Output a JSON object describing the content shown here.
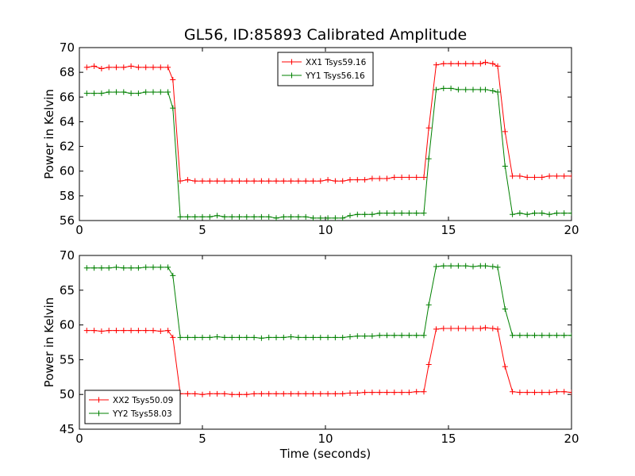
{
  "title": "GL56, ID:85893 Calibrated Amplitude",
  "chart_data": [
    {
      "type": "line",
      "title": "GL56, ID:85893 Calibrated Amplitude",
      "xlabel": "",
      "ylabel": "Power in Kelvin",
      "xlim": [
        0,
        20
      ],
      "ylim": [
        56,
        70
      ],
      "xticks": [
        0,
        5,
        10,
        15,
        20
      ],
      "yticks": [
        56,
        58,
        60,
        62,
        64,
        66,
        68,
        70
      ],
      "grid": false,
      "legend_position": "upper center",
      "x": [
        0.3,
        0.6,
        0.9,
        1.2,
        1.5,
        1.8,
        2.1,
        2.4,
        2.7,
        3.0,
        3.3,
        3.6,
        3.8,
        4.1,
        4.4,
        4.7,
        5.0,
        5.3,
        5.6,
        5.9,
        6.2,
        6.5,
        6.8,
        7.1,
        7.4,
        7.7,
        8.0,
        8.3,
        8.6,
        8.9,
        9.2,
        9.5,
        9.8,
        10.1,
        10.4,
        10.7,
        11.0,
        11.3,
        11.6,
        11.9,
        12.2,
        12.5,
        12.8,
        13.1,
        13.4,
        13.7,
        14.0,
        14.2,
        14.5,
        14.8,
        15.1,
        15.4,
        15.7,
        16.0,
        16.3,
        16.5,
        16.8,
        17.0,
        17.3,
        17.6,
        17.9,
        18.2,
        18.5,
        18.8,
        19.1,
        19.4,
        19.7,
        20.0
      ],
      "series": [
        {
          "name": "XX1 Tsys59.16",
          "color": "#ff0000",
          "values": [
            68.4,
            68.5,
            68.3,
            68.4,
            68.4,
            68.4,
            68.5,
            68.4,
            68.4,
            68.4,
            68.4,
            68.4,
            67.4,
            59.2,
            59.3,
            59.2,
            59.2,
            59.2,
            59.2,
            59.2,
            59.2,
            59.2,
            59.2,
            59.2,
            59.2,
            59.2,
            59.2,
            59.2,
            59.2,
            59.2,
            59.2,
            59.2,
            59.2,
            59.3,
            59.2,
            59.2,
            59.3,
            59.3,
            59.3,
            59.4,
            59.4,
            59.4,
            59.5,
            59.5,
            59.5,
            59.5,
            59.5,
            63.5,
            68.6,
            68.7,
            68.7,
            68.7,
            68.7,
            68.7,
            68.7,
            68.8,
            68.7,
            68.5,
            63.2,
            59.6,
            59.6,
            59.5,
            59.5,
            59.5,
            59.6,
            59.6,
            59.6,
            59.6
          ]
        },
        {
          "name": "YY1 Tsys56.16",
          "color": "#008000",
          "values": [
            66.3,
            66.3,
            66.3,
            66.4,
            66.4,
            66.4,
            66.3,
            66.3,
            66.4,
            66.4,
            66.4,
            66.4,
            65.1,
            56.3,
            56.3,
            56.3,
            56.3,
            56.3,
            56.4,
            56.3,
            56.3,
            56.3,
            56.3,
            56.3,
            56.3,
            56.3,
            56.2,
            56.3,
            56.3,
            56.3,
            56.3,
            56.2,
            56.2,
            56.2,
            56.2,
            56.2,
            56.4,
            56.5,
            56.5,
            56.5,
            56.6,
            56.6,
            56.6,
            56.6,
            56.6,
            56.6,
            56.6,
            61.0,
            66.6,
            66.7,
            66.7,
            66.6,
            66.6,
            66.6,
            66.6,
            66.6,
            66.5,
            66.4,
            60.4,
            56.5,
            56.6,
            56.5,
            56.6,
            56.6,
            56.5,
            56.6,
            56.6,
            56.6
          ]
        }
      ]
    },
    {
      "type": "line",
      "title": "",
      "xlabel": "Time (seconds)",
      "ylabel": "Power in Kelvin",
      "xlim": [
        0,
        20
      ],
      "ylim": [
        45,
        70
      ],
      "xticks": [
        0,
        5,
        10,
        15,
        20
      ],
      "yticks": [
        45,
        50,
        55,
        60,
        65,
        70
      ],
      "grid": false,
      "legend_position": "lower left",
      "x": [
        0.3,
        0.6,
        0.9,
        1.2,
        1.5,
        1.8,
        2.1,
        2.4,
        2.7,
        3.0,
        3.3,
        3.6,
        3.8,
        4.1,
        4.4,
        4.7,
        5.0,
        5.3,
        5.6,
        5.9,
        6.2,
        6.5,
        6.8,
        7.1,
        7.4,
        7.7,
        8.0,
        8.3,
        8.6,
        8.9,
        9.2,
        9.5,
        9.8,
        10.1,
        10.4,
        10.7,
        11.0,
        11.3,
        11.6,
        11.9,
        12.2,
        12.5,
        12.8,
        13.1,
        13.4,
        13.7,
        14.0,
        14.2,
        14.5,
        14.8,
        15.1,
        15.4,
        15.7,
        16.0,
        16.3,
        16.5,
        16.8,
        17.0,
        17.3,
        17.6,
        17.9,
        18.2,
        18.5,
        18.8,
        19.1,
        19.4,
        19.7,
        20.0
      ],
      "series": [
        {
          "name": "XX2 Tsys50.09",
          "color": "#ff0000",
          "values": [
            59.2,
            59.2,
            59.1,
            59.2,
            59.2,
            59.2,
            59.2,
            59.2,
            59.2,
            59.2,
            59.1,
            59.2,
            58.2,
            50.1,
            50.1,
            50.1,
            50.0,
            50.1,
            50.1,
            50.1,
            50.0,
            50.0,
            50.0,
            50.1,
            50.1,
            50.1,
            50.1,
            50.1,
            50.1,
            50.1,
            50.1,
            50.1,
            50.1,
            50.1,
            50.1,
            50.1,
            50.2,
            50.2,
            50.3,
            50.3,
            50.3,
            50.3,
            50.3,
            50.3,
            50.3,
            50.4,
            50.4,
            54.3,
            59.4,
            59.5,
            59.5,
            59.5,
            59.5,
            59.5,
            59.5,
            59.6,
            59.5,
            59.4,
            54.0,
            50.4,
            50.3,
            50.3,
            50.3,
            50.3,
            50.3,
            50.4,
            50.4,
            50.3
          ]
        },
        {
          "name": "YY2 Tsys58.03",
          "color": "#008000",
          "values": [
            68.2,
            68.2,
            68.2,
            68.2,
            68.3,
            68.2,
            68.2,
            68.2,
            68.3,
            68.3,
            68.3,
            68.3,
            67.1,
            58.2,
            58.2,
            58.2,
            58.2,
            58.2,
            58.3,
            58.2,
            58.2,
            58.2,
            58.2,
            58.2,
            58.1,
            58.2,
            58.2,
            58.2,
            58.3,
            58.2,
            58.2,
            58.2,
            58.2,
            58.2,
            58.2,
            58.2,
            58.3,
            58.4,
            58.4,
            58.4,
            58.5,
            58.5,
            58.5,
            58.5,
            58.5,
            58.5,
            58.5,
            62.9,
            68.4,
            68.5,
            68.5,
            68.5,
            68.5,
            68.4,
            68.5,
            68.5,
            68.4,
            68.3,
            62.3,
            58.5,
            58.5,
            58.5,
            58.5,
            58.5,
            58.5,
            58.5,
            58.5,
            58.5
          ]
        }
      ]
    }
  ]
}
